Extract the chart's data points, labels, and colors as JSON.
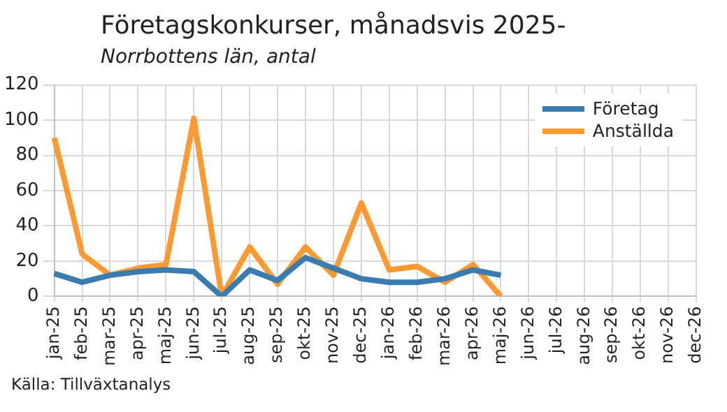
{
  "chart_data": {
    "type": "line",
    "title": "Företagskonkurser, månadsvis 2025-",
    "subtitle": "Norrbottens län, antal",
    "categories": [
      "jan-25",
      "feb-25",
      "mar-25",
      "apr-25",
      "maj-25",
      "jun-25",
      "jul-25",
      "aug-25",
      "sep-25",
      "okt-25",
      "nov-25",
      "dec-25",
      "jan-26",
      "feb-26",
      "mar-26",
      "apr-26",
      "maj-26",
      "jun-26",
      "jul-26",
      "aug-26",
      "sep-26",
      "okt-26",
      "nov-26",
      "dec-26"
    ],
    "series": [
      {
        "name": "Företag",
        "color": "#3a7bb0",
        "values": [
          13,
          8,
          12,
          14,
          15,
          14,
          0,
          15,
          9,
          22,
          16,
          10,
          8,
          8,
          10,
          15,
          12,
          null,
          null,
          null,
          null,
          null,
          null,
          null
        ]
      },
      {
        "name": "Anställda",
        "color": "#ff9a33",
        "values": [
          90,
          24,
          12,
          16,
          18,
          101,
          0,
          28,
          7,
          28,
          12,
          53,
          15,
          17,
          8,
          18,
          0,
          null,
          null,
          null,
          null,
          null,
          null,
          null
        ]
      }
    ],
    "ylim": [
      0,
      120
    ],
    "yticks": [
      0,
      20,
      40,
      60,
      80,
      100,
      120
    ],
    "grid": true,
    "legend": "top right",
    "marker": "none",
    "line_style": "solid",
    "annotations": [
      "Källa: Tillväxtanalys"
    ]
  }
}
